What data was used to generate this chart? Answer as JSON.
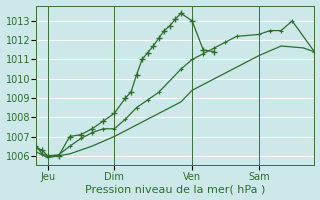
{
  "xlabel": "Pression niveau de la mer( hPa )",
  "bg_color": "#cce8e8",
  "grid_color": "#ffffff",
  "line_color": "#2d6e2d",
  "ylim": [
    1005.5,
    1013.8
  ],
  "xlim": [
    0,
    100
  ],
  "yticks": [
    1006,
    1007,
    1008,
    1009,
    1010,
    1011,
    1012,
    1013
  ],
  "xtick_positions": [
    4,
    28,
    56,
    80
  ],
  "xtick_labels": [
    "Jeu",
    "Dim",
    "Ven",
    "Sam"
  ],
  "vlines": [
    4,
    28,
    56,
    80
  ],
  "series1_x": [
    0,
    2,
    4,
    8,
    12,
    16,
    20,
    24,
    28,
    32,
    34,
    36,
    38,
    40,
    42,
    44,
    46,
    48,
    50,
    52,
    56,
    60,
    64
  ],
  "series1_y": [
    1006.4,
    1006.3,
    1006.0,
    1006.0,
    1007.0,
    1007.1,
    1007.4,
    1007.8,
    1008.2,
    1009.0,
    1009.3,
    1010.2,
    1011.0,
    1011.35,
    1011.7,
    1012.1,
    1012.5,
    1012.75,
    1013.1,
    1013.4,
    1013.0,
    1011.5,
    1011.4
  ],
  "series2_x": [
    0,
    2,
    4,
    8,
    12,
    16,
    20,
    24,
    28,
    32,
    36,
    40,
    44,
    52,
    56,
    60,
    64,
    68,
    72,
    80,
    84,
    88,
    92,
    100
  ],
  "series2_y": [
    1006.5,
    1006.1,
    1006.0,
    1006.05,
    1006.5,
    1006.9,
    1007.2,
    1007.4,
    1007.4,
    1007.9,
    1008.5,
    1008.9,
    1009.3,
    1010.5,
    1011.0,
    1011.3,
    1011.6,
    1011.9,
    1012.2,
    1012.3,
    1012.5,
    1012.5,
    1013.0,
    1011.4
  ],
  "series3_x": [
    0,
    4,
    12,
    20,
    28,
    36,
    44,
    52,
    56,
    64,
    72,
    80,
    88,
    96,
    100
  ],
  "series3_y": [
    1006.2,
    1005.9,
    1006.1,
    1006.5,
    1007.0,
    1007.6,
    1008.2,
    1008.8,
    1009.4,
    1010.0,
    1010.6,
    1011.2,
    1011.7,
    1011.6,
    1011.4
  ]
}
